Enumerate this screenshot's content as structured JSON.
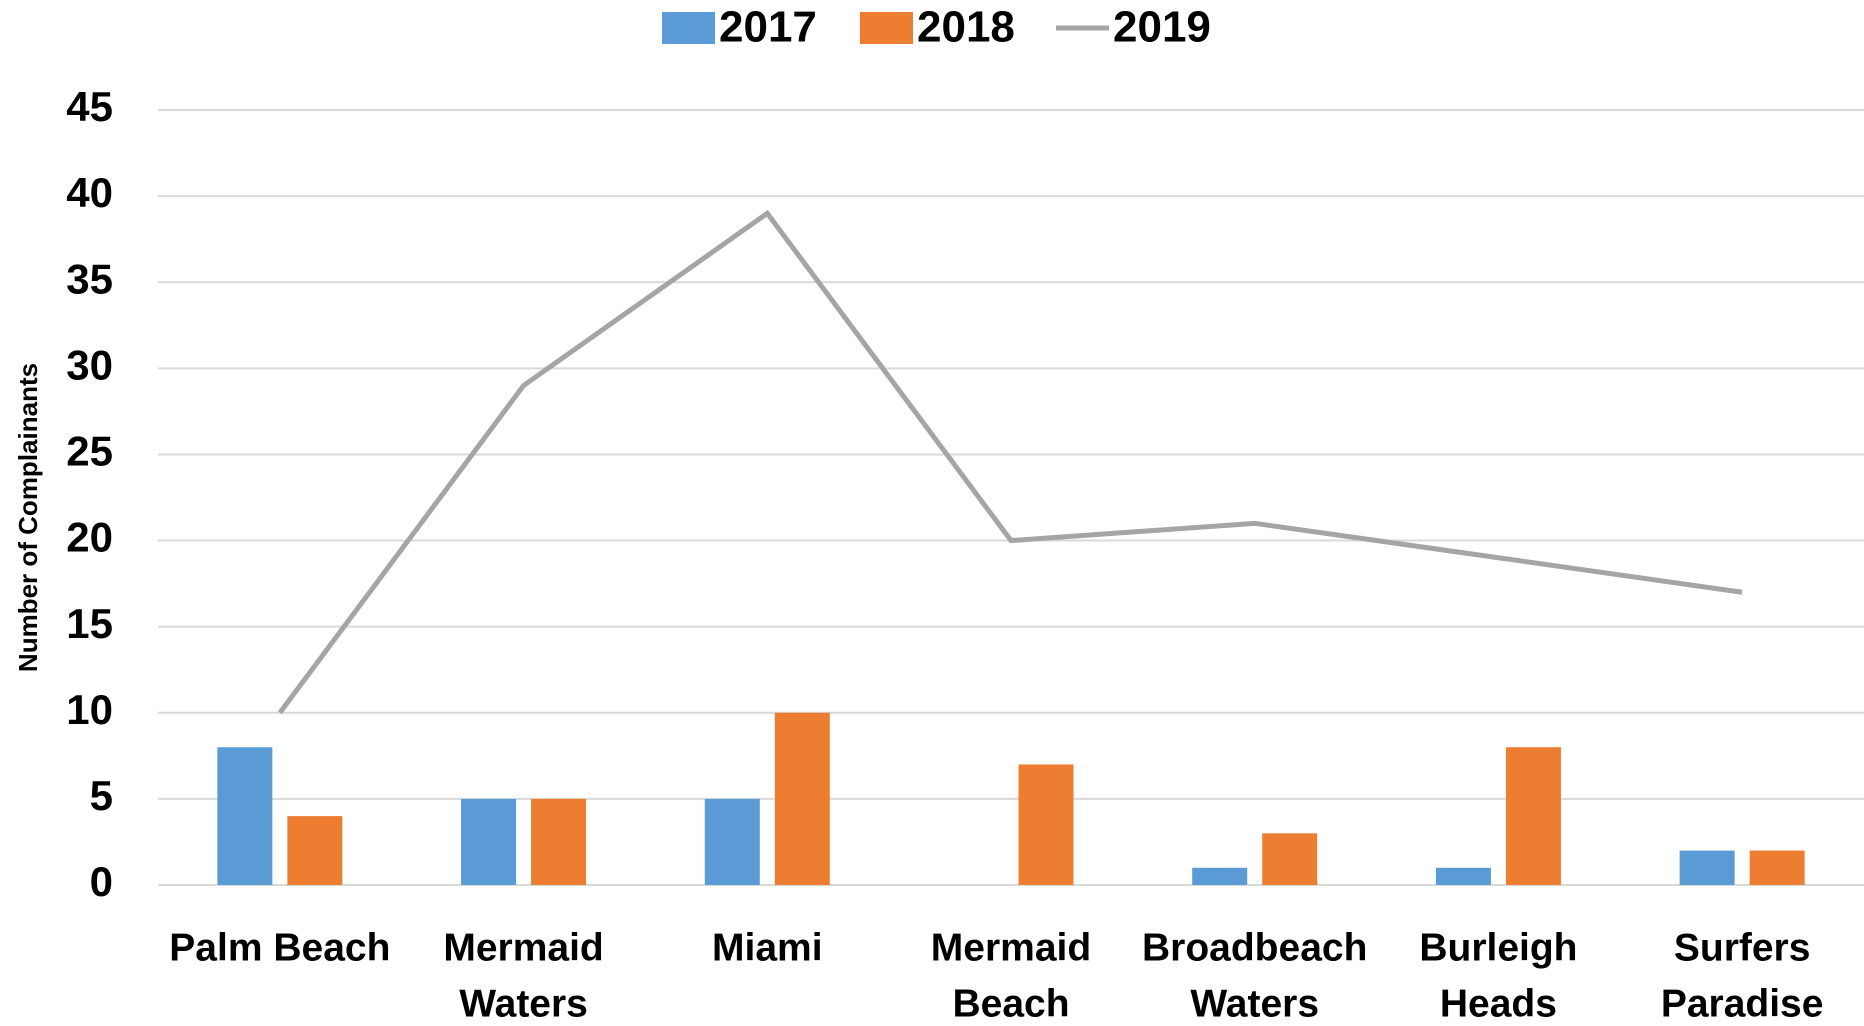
{
  "chart_data": {
    "type": "bar-line",
    "y_axis_label": "Number of Complainants",
    "categories": [
      [
        "Palm Beach"
      ],
      [
        "Mermaid",
        "Waters"
      ],
      [
        "Miami"
      ],
      [
        "Mermaid",
        "Beach"
      ],
      [
        "Broadbeach",
        "Waters"
      ],
      [
        "Burleigh",
        "Heads"
      ],
      [
        "Surfers",
        "Paradise"
      ]
    ],
    "series": [
      {
        "name": "2017",
        "type": "bar",
        "color": "#5b9bd5",
        "values": [
          8,
          5,
          5,
          0,
          1,
          1,
          2
        ]
      },
      {
        "name": "2018",
        "type": "bar",
        "color": "#ed7d31",
        "values": [
          4,
          5,
          10,
          7,
          3,
          8,
          2
        ]
      },
      {
        "name": "2019",
        "type": "line",
        "color": "#a5a5a5",
        "values": [
          10,
          29,
          39,
          20,
          21,
          19,
          17
        ]
      }
    ],
    "ylim": [
      0,
      45
    ],
    "yticks": [
      0,
      5,
      10,
      15,
      20,
      25,
      30,
      35,
      40,
      45
    ],
    "grid": true,
    "legend": "top"
  }
}
